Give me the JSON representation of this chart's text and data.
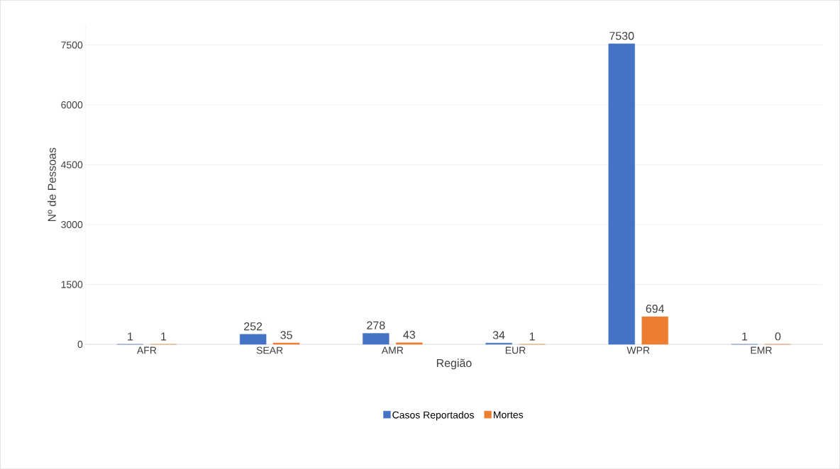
{
  "chart_data": {
    "type": "bar",
    "xlabel": "Região",
    "ylabel": "Nº de Pessoas",
    "categories": [
      "AFR",
      "SEAR",
      "AMR",
      "EUR",
      "WPR",
      "EMR"
    ],
    "series": [
      {
        "name": "Casos Reportados",
        "color": "#4472c4",
        "values": [
          1,
          252,
          278,
          34,
          7530,
          1
        ]
      },
      {
        "name": "Mortes",
        "color": "#ed7d31",
        "values": [
          1,
          35,
          43,
          1,
          694,
          0
        ]
      }
    ],
    "ylim": [
      0,
      8000
    ],
    "yticks": [
      0,
      1500,
      3000,
      4500,
      6000,
      7500
    ],
    "grid": "y",
    "legend": "bottom",
    "data_labels": true
  }
}
